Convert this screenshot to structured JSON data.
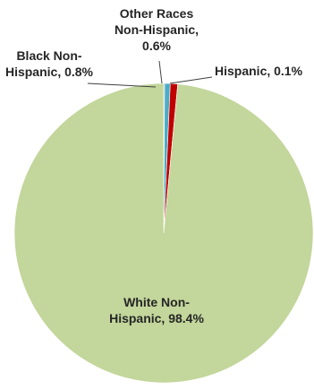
{
  "chart_data": {
    "type": "pie",
    "slices": [
      {
        "label_lines": [
          "Hispanic, 0.1%"
        ],
        "value": 0.1,
        "color": "#1f5f8b"
      },
      {
        "label_lines": [
          "Other Races",
          "Non-Hispanic,",
          "0.6%"
        ],
        "value": 0.6,
        "color": "#4bacc6"
      },
      {
        "label_lines": [
          "Black Non-",
          "Hispanic, 0.8%"
        ],
        "value": 0.8,
        "color": "#c00000"
      },
      {
        "label_lines": [
          "White Non-",
          "Hispanic, 98.4%"
        ],
        "value": 98.4,
        "color": "#c3d69b"
      }
    ],
    "legend": "none",
    "data_labels": "outside with leader lines; largest slice labelled inside"
  }
}
